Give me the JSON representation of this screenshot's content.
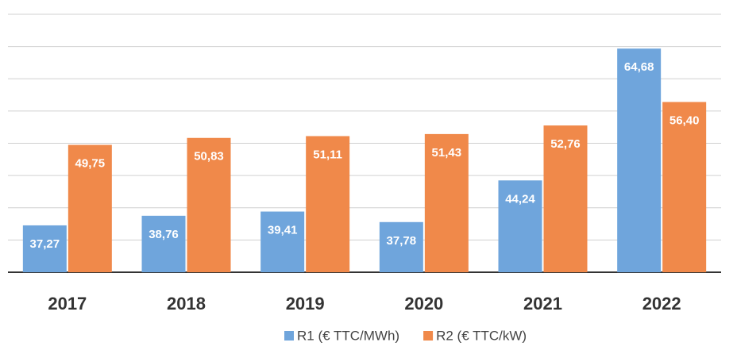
{
  "chart_data": {
    "type": "bar",
    "categories": [
      "2017",
      "2018",
      "2019",
      "2020",
      "2021",
      "2022"
    ],
    "series": [
      {
        "name": "R1 (€ TTC/MWh)",
        "color": "#6fa5dc",
        "values": [
          37.27,
          38.76,
          39.41,
          37.78,
          44.24,
          64.68
        ],
        "value_labels": [
          "37,27",
          "38,76",
          "39,41",
          "37,78",
          "44,24",
          "64,68"
        ]
      },
      {
        "name": "R2 (€ TTC/kW)",
        "color": "#f0894a",
        "values": [
          49.75,
          50.83,
          51.11,
          51.43,
          52.76,
          56.4
        ],
        "value_labels": [
          "49,75",
          "50,83",
          "51,11",
          "51,43",
          "52,76",
          "56,40"
        ]
      }
    ],
    "ylim": [
      30,
      70
    ],
    "yticks": [
      30,
      35,
      40,
      45,
      50,
      55,
      60,
      65,
      70
    ],
    "grid": true,
    "legend": "bottom"
  }
}
